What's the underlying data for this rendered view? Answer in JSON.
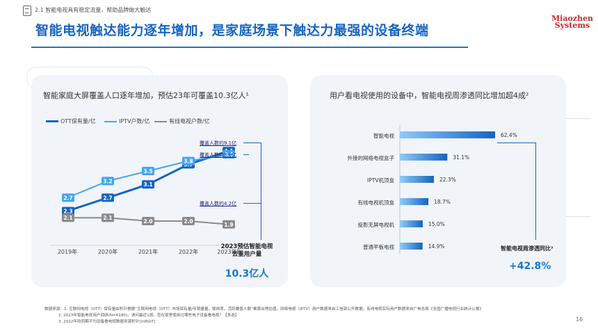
{
  "header": {
    "section_label": "2.1 智能电视具有稳定流量，帮助品牌做大触达",
    "title": "智能电视触达能力逐年增加，是家庭场景下触达力最强的设备终端",
    "logo_line1": "Miaozhen",
    "logo_line2": "Systems",
    "accent_color": "#1976d2"
  },
  "left_panel": {
    "title": "智能家庭大屏覆盖人口逐年增加，预估23年可覆盖10.3亿人¹",
    "legend": [
      {
        "label": "OTT保有量/亿",
        "color": "#1565c0"
      },
      {
        "label": "IPTV户数/亿",
        "color": "#42a5f5"
      },
      {
        "label": "有线电视户数/亿",
        "color": "#8a8a8a"
      }
    ],
    "annotations": [
      "覆盖人数约9.1亿",
      "覆盖人数约8.8亿",
      "覆盖人数约4.2亿"
    ],
    "callout_line1": "2023预估智能电视",
    "callout_line2": "去重用户量",
    "callout_value": "10.3亿人"
  },
  "chart_data": [
    {
      "type": "line",
      "categories": [
        "2019年",
        "2020年",
        "2021年",
        "2022年",
        "2023年E"
      ],
      "series": [
        {
          "name": "OTT保有量/亿",
          "values": [
            2.3,
            2.7,
            3.1,
            3.7,
            4.1
          ]
        },
        {
          "name": "IPTV户数/亿",
          "values": [
            2.7,
            3.2,
            3.5,
            3.8,
            4.0
          ]
        },
        {
          "name": "有线电视户数/亿",
          "values": [
            2.1,
            2.1,
            2.0,
            2.0,
            1.9
          ]
        }
      ],
      "title": "智能家庭大屏覆盖人口逐年增加，预估23年可覆盖10.3亿人¹",
      "legend_position": "top-left",
      "grid": false
    },
    {
      "type": "bar",
      "orientation": "horizontal",
      "categories": [
        "智能电视",
        "外接的网络电视盒子",
        "IPTV机顶盒",
        "有线电视机顶盒",
        "投影无屏电视机",
        "普通平板电视"
      ],
      "values": [
        62.4,
        31.1,
        22.3,
        18.7,
        15.0,
        14.9
      ],
      "value_labels": [
        "62.4%",
        "31.1%",
        "22.3%",
        "18.7%",
        "15.0%",
        "14.9%"
      ],
      "title": "用户看电视使用的设备中，智能电视周渗透同比增加超4成²",
      "grid": false
    }
  ],
  "right_panel": {
    "title": "用户看电视使用的设备中，智能电视周渗透同比增加超4成²",
    "callout_label": "智能电视周渗透同比³",
    "callout_value": "+42.8%"
  },
  "footer": {
    "note1": "数据来源：1. 互联网电视（OTT）保有量由秒针根据“互联网电视（OTT）市场保有量/年销量量，联网率，活跃覆盖人数”推算出预估值，网络电视（IPTV）用户数据来自工信部公开数据，有线电视实际用户数据来自广电总局《全国广播电视行业统计公报》",
    "note2": "2. 2023年智能电视用户调研(N=6180)，请问最近1周，您在家里使用过哪些电子设备看电视？【多选】",
    "note3": "3. 2022年较同期平均设备看电视数据来源秒针[mRGIT]",
    "page_number": "16"
  }
}
